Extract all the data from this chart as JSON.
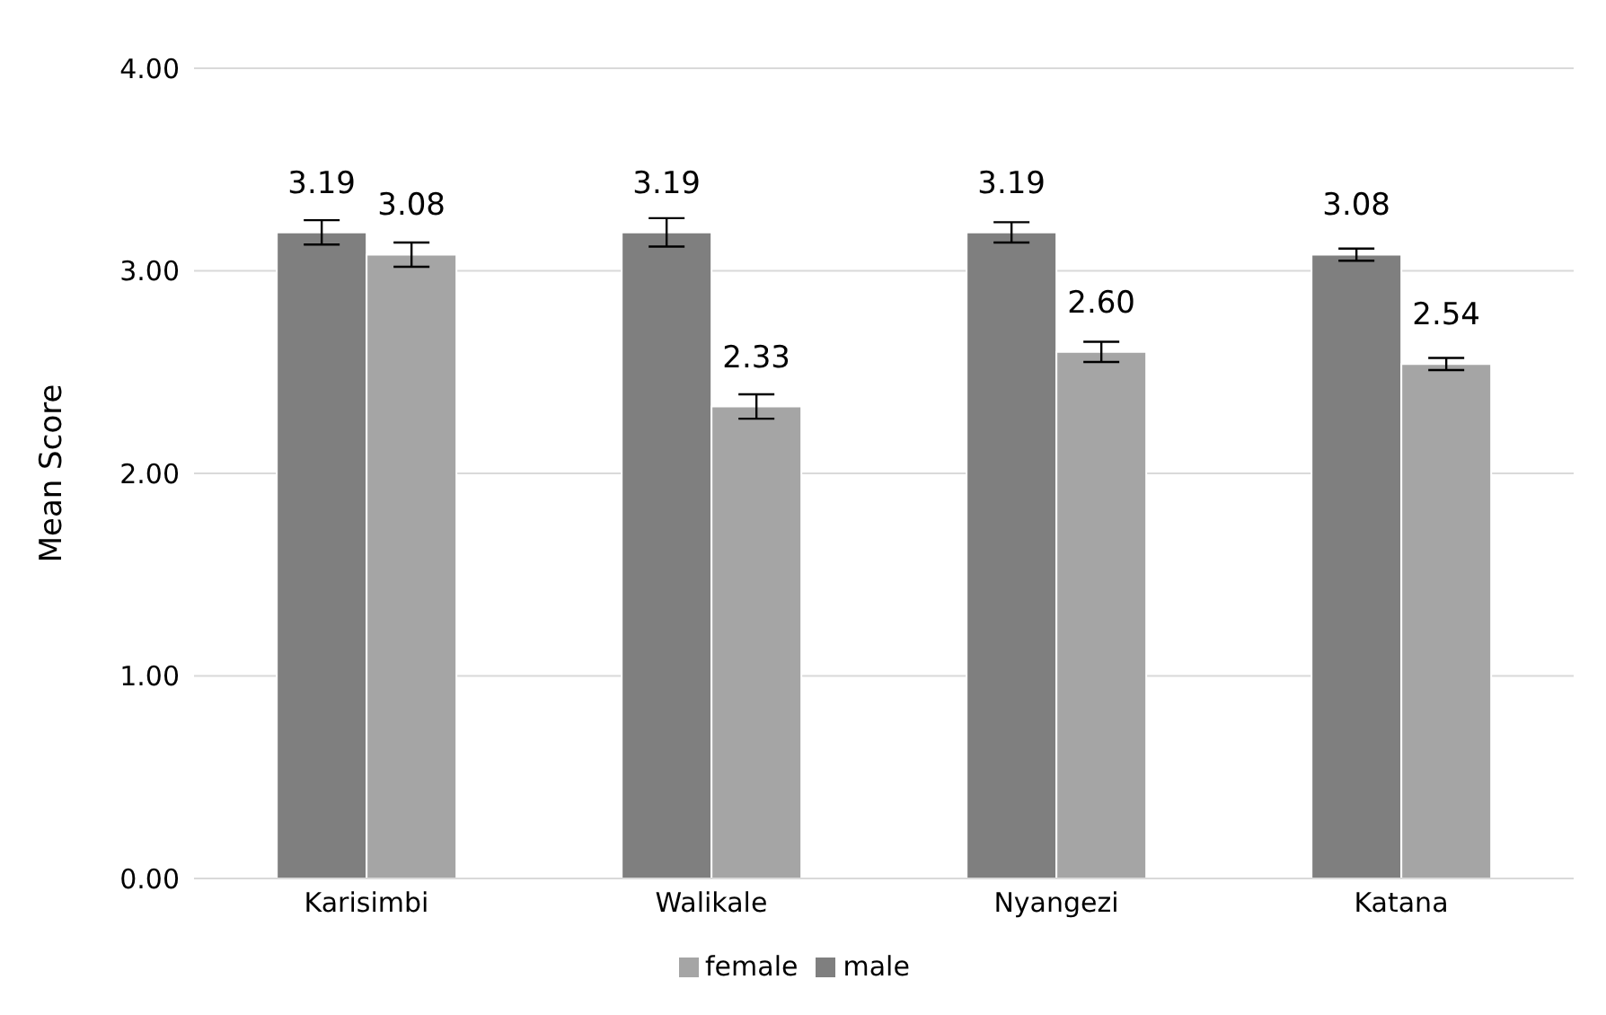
{
  "chart_data": {
    "type": "bar",
    "ylabel": "Mean Score",
    "categories": [
      "Karisimbi",
      "Walikale",
      "Nyangezi",
      "Katana"
    ],
    "series": [
      {
        "name": "male",
        "color": "#7f7f7f",
        "values": [
          3.19,
          3.19,
          3.19,
          3.08
        ],
        "errors": [
          0.06,
          0.07,
          0.05,
          0.03
        ],
        "value_labels": [
          "3.19",
          "3.19",
          "3.19",
          "3.08"
        ]
      },
      {
        "name": "female",
        "color": "#a5a5a5",
        "values": [
          3.08,
          2.33,
          2.6,
          2.54
        ],
        "errors": [
          0.06,
          0.06,
          0.05,
          0.03
        ],
        "value_labels": [
          "3.08",
          "2.33",
          "2.60",
          "2.54"
        ]
      }
    ],
    "ylim": [
      0,
      4
    ],
    "yticks": [
      {
        "value": 0,
        "label": "0.00"
      },
      {
        "value": 1,
        "label": "1.00"
      },
      {
        "value": 2,
        "label": "2.00"
      },
      {
        "value": 3,
        "label": "3.00"
      },
      {
        "value": 4,
        "label": "4.00"
      }
    ],
    "grid": "y",
    "legend": "bottom"
  }
}
